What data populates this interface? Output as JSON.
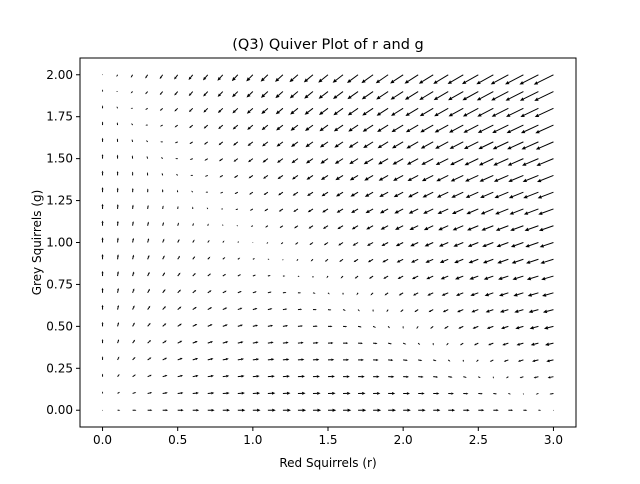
{
  "chart_data": {
    "type": "quiver",
    "title": "(Q3) Quiver Plot of r and g",
    "xlabel": "Red Squirrels (r)",
    "ylabel": "Grey Squirrels (g)",
    "xlim": [
      -0.15,
      3.15
    ],
    "ylim": [
      -0.1,
      2.1
    ],
    "xticks": [
      0.0,
      0.5,
      1.0,
      1.5,
      2.0,
      2.5,
      3.0
    ],
    "xtick_labels": [
      "0.0",
      "0.5",
      "1.0",
      "1.5",
      "2.0",
      "2.5",
      "3.0"
    ],
    "yticks": [
      0.0,
      0.25,
      0.5,
      0.75,
      1.0,
      1.25,
      1.5,
      1.75,
      2.0
    ],
    "ytick_labels": [
      "0.00",
      "0.25",
      "0.50",
      "0.75",
      "1.00",
      "1.25",
      "1.50",
      "1.75",
      "2.00"
    ],
    "grid_x": {
      "start": 0.0,
      "stop": 3.0,
      "count": 31
    },
    "grid_y": {
      "start": 0.0,
      "stop": 2.0,
      "count": 21
    },
    "vector_field": {
      "dr_dt": "r*(3 - r - 2*g)",
      "dg_dt": "g*(2 - r - g)",
      "normalized": true,
      "arrow_color": "#000000"
    },
    "grid": false,
    "legend": "none"
  }
}
